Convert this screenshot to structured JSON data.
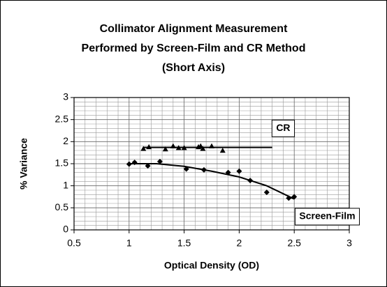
{
  "chart_data": {
    "type": "scatter",
    "title": [
      "Collimator Alignment Measurement",
      "Performed by Screen-Film and CR Method",
      "(Short Axis)"
    ],
    "x_label": "Optical Density (OD)",
    "y_label": "% Variance",
    "xlim": [
      0.5,
      3
    ],
    "xticks": [
      0.5,
      1,
      1.5,
      2,
      2.5,
      3
    ],
    "ylim": [
      0,
      3
    ],
    "yticks": [
      0,
      0.5,
      1,
      1.5,
      2,
      2.5,
      3
    ],
    "grid": true,
    "series": [
      {
        "name": "CR",
        "color": "#000000",
        "marker": "triangle",
        "x": [
          1.13,
          1.18,
          1.33,
          1.4,
          1.45,
          1.5,
          1.63,
          1.65,
          1.67,
          1.75,
          1.85
        ],
        "values": [
          1.84,
          1.88,
          1.83,
          1.9,
          1.86,
          1.86,
          1.88,
          1.9,
          1.84,
          1.9,
          1.8
        ],
        "trend": {
          "x": [
            1.13,
            2.3
          ],
          "values": [
            1.87,
            1.87
          ]
        }
      },
      {
        "name": "Screen-Film",
        "color": "#000000",
        "marker": "diamond",
        "x": [
          1.0,
          1.05,
          1.17,
          1.28,
          1.52,
          1.68,
          1.9,
          2.0,
          2.1,
          2.25,
          2.45,
          2.5
        ],
        "values": [
          1.49,
          1.53,
          1.45,
          1.55,
          1.38,
          1.36,
          1.3,
          1.33,
          1.12,
          0.85,
          0.72,
          0.75
        ],
        "trend": {
          "x": [
            1.0,
            1.25,
            1.5,
            1.75,
            2.0,
            2.25,
            2.5
          ],
          "values": [
            1.5,
            1.5,
            1.44,
            1.33,
            1.2,
            1.0,
            0.7
          ]
        }
      }
    ]
  }
}
